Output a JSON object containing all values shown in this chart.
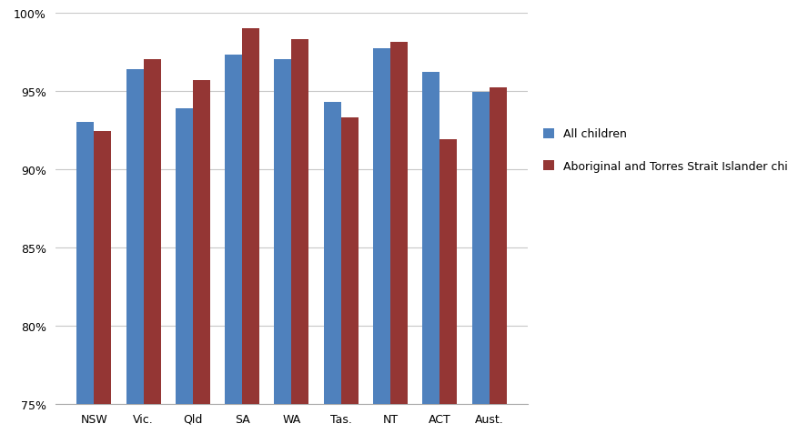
{
  "categories": [
    "NSW",
    "Vic.",
    "Qld",
    "SA",
    "WA",
    "Tas.",
    "NT",
    "ACT",
    "Aust."
  ],
  "all_children": [
    93.0,
    96.4,
    93.9,
    97.3,
    97.0,
    94.3,
    97.7,
    96.2,
    94.9
  ],
  "aboriginal_children": [
    92.4,
    97.0,
    95.7,
    99.0,
    98.3,
    93.3,
    98.1,
    91.9,
    95.2
  ],
  "color_all": "#4f81bd",
  "color_aboriginal": "#943634",
  "ylim_min": 75,
  "ylim_max": 100,
  "yticks": [
    75,
    80,
    85,
    90,
    95,
    100
  ],
  "legend_all": "All children",
  "legend_aboriginal": "Aboriginal and Torres Strait Islander children",
  "bar_width": 0.35,
  "grid_color": "#c8c8c8",
  "background_color": "#ffffff",
  "tick_fontsize": 9,
  "legend_fontsize": 9
}
